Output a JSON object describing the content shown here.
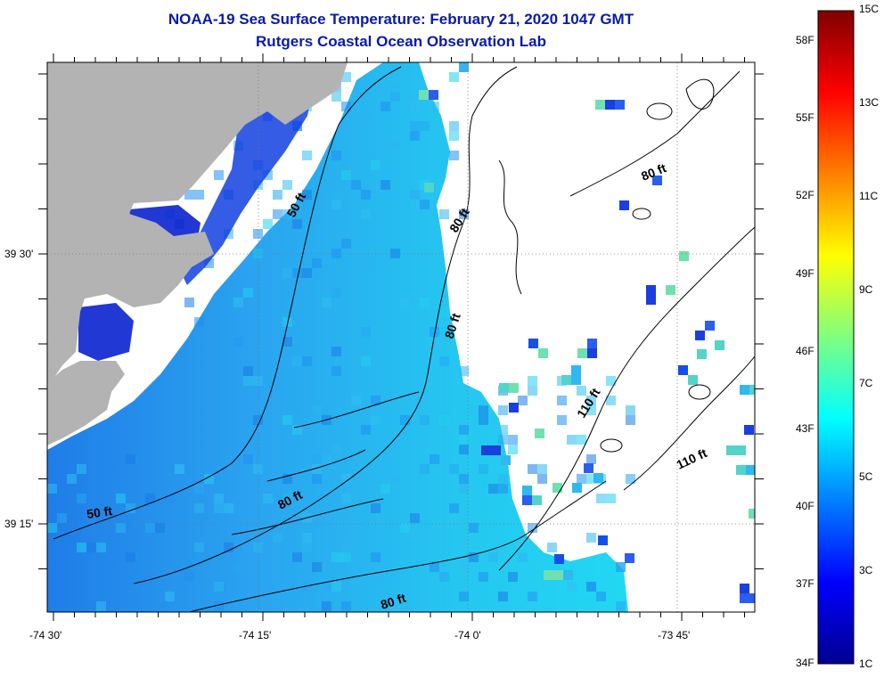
{
  "header": {
    "title": "NOAA-19 Sea Surface Temperature:  February 21, 2020 1047 GMT",
    "subtitle": "Rutgers Coastal Ocean Observation Lab"
  },
  "axes": {
    "x_ticks": [
      "-74 30'",
      "-74 15'",
      "-74 0'",
      "-73 45'"
    ],
    "y_ticks": [
      "39 30'",
      "39 15'"
    ]
  },
  "contours": {
    "labels": [
      "50 ft",
      "50 ft",
      "80 ft",
      "80 ft",
      "80 ft",
      "80 ft",
      "80 ft",
      "110 ft",
      "110 ft"
    ]
  },
  "colorbar": {
    "fahrenheit_labels": [
      "58F",
      "55F",
      "52F",
      "49F",
      "46F",
      "43F",
      "40F",
      "37F",
      "34F"
    ],
    "celsius_labels": [
      "15C",
      "13C",
      "11C",
      "9C",
      "7C",
      "5C",
      "3C",
      "1C"
    ],
    "range_c": [
      1,
      15
    ],
    "colors": [
      "#00008f",
      "#0000ff",
      "#0080ff",
      "#00ffff",
      "#80ff80",
      "#ffff00",
      "#ff8000",
      "#ff0000",
      "#800000"
    ]
  },
  "colors": {
    "land": "#b3b3b3",
    "no_data": "#ffffff",
    "title": "#0a1aa8",
    "water_deep": "#1e78f0",
    "water_mid": "#2aa6f2",
    "water_shallow": "#20d6f2"
  }
}
